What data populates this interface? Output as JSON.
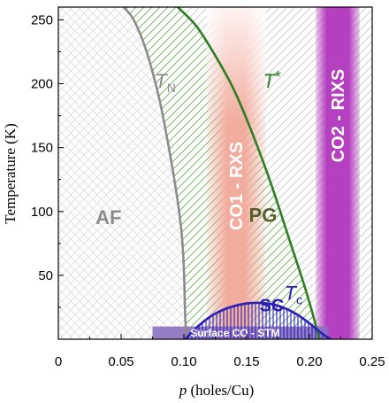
{
  "chart_data": {
    "type": "area",
    "xlabel_var": "p",
    "xlabel_unit": " (holes/Cu)",
    "ylabel": "Temperature (K)",
    "xlim": [
      0,
      0.25
    ],
    "ylim": [
      0,
      260
    ],
    "x_ticks": [
      0,
      0.05,
      0.1,
      0.15,
      0.2,
      0.25
    ],
    "x_tick_labels": [
      "0",
      "0.05",
      "0.10",
      "0.15",
      "0.20",
      "0.25"
    ],
    "y_ticks": [
      50,
      100,
      150,
      200,
      250
    ],
    "y_tick_labels": [
      "50",
      "100",
      "150",
      "200",
      "250"
    ],
    "grid": false,
    "series": [
      {
        "name_main": "T",
        "name_sub": "N",
        "color": "#8c8c8c",
        "x": [
          0.052,
          0.06,
          0.07,
          0.08,
          0.088,
          0.094,
          0.098,
          0.1,
          0.101,
          0.102
        ],
        "y": [
          260,
          250,
          226,
          190,
          150,
          115,
          85,
          55,
          20,
          0
        ]
      },
      {
        "name_main": "T",
        "name_sub": "*",
        "color": "#2e7d23",
        "x": [
          0.095,
          0.11,
          0.125,
          0.14,
          0.155,
          0.17,
          0.185,
          0.195,
          0.202,
          0.208
        ],
        "y": [
          260,
          245,
          222,
          195,
          160,
          120,
          75,
          45,
          22,
          0
        ]
      },
      {
        "name_main": "T",
        "name_sub": "c",
        "color": "#2a1fb5",
        "x": [
          0.101,
          0.11,
          0.12,
          0.13,
          0.14,
          0.15,
          0.16,
          0.17,
          0.18,
          0.19,
          0.2,
          0.21,
          0.217
        ],
        "y": [
          0,
          9,
          17,
          22.5,
          26,
          28,
          28.5,
          27.5,
          24.5,
          19.5,
          12.5,
          4.5,
          0
        ]
      }
    ],
    "regions": [
      {
        "label": "AF",
        "color": "#8c8c8c",
        "x": 0.04,
        "y": 90
      },
      {
        "label": "PG",
        "color": "#55602b",
        "x": 0.163,
        "y": 92
      },
      {
        "label": "SC",
        "color": "#2a1fb5",
        "x": 0.17,
        "y": 22
      }
    ],
    "bands": [
      {
        "label": "CO1 - RXS",
        "x_range": [
          0.118,
          0.165
        ],
        "color": "#f2a99a"
      },
      {
        "label": "CO2 - RIXS",
        "x_range": [
          0.205,
          0.24
        ],
        "color": "#b43fbf"
      }
    ],
    "strip": {
      "label": "Surface CO - STM",
      "x_range": [
        0.075,
        0.215
      ],
      "y_range": [
        0,
        10
      ],
      "color": "#8a70bf"
    }
  }
}
